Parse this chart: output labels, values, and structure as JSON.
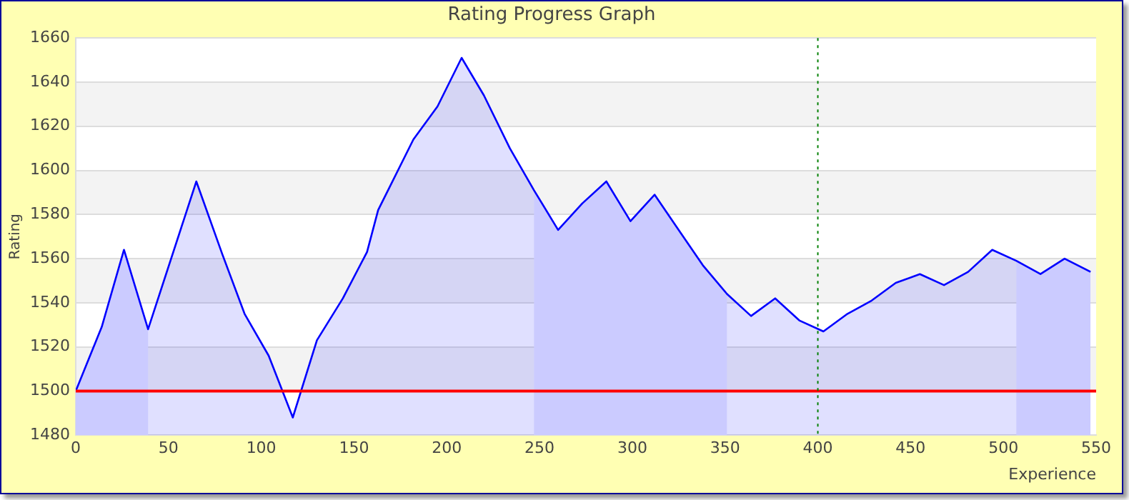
{
  "chart_data": {
    "type": "area",
    "title": "Rating Progress Graph",
    "xlabel": "Experience",
    "ylabel": "Rating",
    "x": [
      0,
      14,
      26,
      39,
      65,
      79,
      91,
      104,
      117,
      130,
      144,
      157,
      163,
      182,
      195,
      208,
      220,
      234,
      247,
      260,
      273,
      286,
      299,
      312,
      325,
      338,
      351,
      364,
      377,
      390,
      403,
      416,
      429,
      442,
      455,
      468,
      481,
      494,
      507,
      520,
      533,
      547
    ],
    "series": [
      {
        "color": "#0000ff",
        "values": [
          1500,
          1529,
          1564,
          1528,
          1595,
          1562,
          1535,
          1516,
          1488,
          1523,
          1542,
          1563,
          1582,
          1614,
          1629,
          1651,
          1634,
          1610,
          1591,
          1573,
          1585,
          1595,
          1577,
          1589,
          1573,
          1557,
          1544,
          1534,
          1542,
          1532,
          1527,
          1535,
          1541,
          1549,
          1553,
          1548,
          1554,
          1564,
          1559,
          1553,
          1560,
          1554
        ]
      }
    ],
    "xlim": [
      0,
      550
    ],
    "xticks": [
      0,
      50,
      100,
      150,
      200,
      250,
      300,
      350,
      400,
      450,
      500,
      550
    ],
    "ylim": [
      1480,
      1660
    ],
    "yticks": [
      1480,
      1500,
      1520,
      1540,
      1560,
      1580,
      1600,
      1620,
      1640,
      1660
    ],
    "bands": [
      {
        "axis": "x",
        "from": 0,
        "to": 39,
        "color": "#e8e8ff"
      },
      {
        "axis": "x",
        "from": 247,
        "to": 351,
        "color": "#e8e8ff"
      },
      {
        "axis": "x",
        "from": 507,
        "to": 547,
        "color": "#e8e8ff"
      }
    ],
    "ref_lines": [
      {
        "axis": "y",
        "value": 1500,
        "color": "#ff0000",
        "line_style": "solid"
      },
      {
        "axis": "x",
        "value": 400,
        "color": "#008000",
        "line_style": "dotted"
      }
    ],
    "grid": "y",
    "legend": false,
    "marker": "none",
    "line_style": "solid"
  }
}
